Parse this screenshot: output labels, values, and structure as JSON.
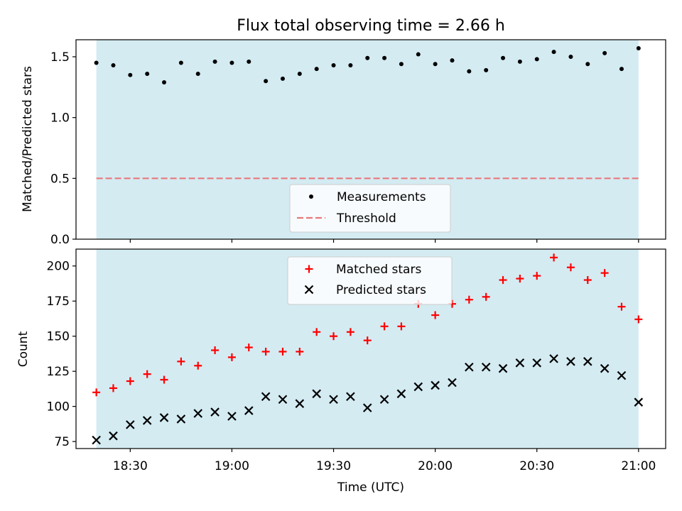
{
  "chart_data": [
    {
      "type": "scatter",
      "title": "Flux total observing time = 2.66 h",
      "ylabel": "Matched/Predicted stars",
      "ylim": [
        0,
        1.64
      ],
      "yticks": [
        0.0,
        0.5,
        1.0,
        1.5
      ],
      "ytick_labels": [
        "0.0",
        "0.5",
        "1.0",
        "1.5"
      ],
      "xlim": [
        "18:14",
        "21:08"
      ],
      "observing_window": [
        "18:20",
        "21:00"
      ],
      "threshold": 0.5,
      "legend_location": "bottom-center",
      "legend": [
        "Measurements",
        "Threshold"
      ],
      "colors": {
        "measurements": "#000000",
        "threshold": "#e8797b",
        "window": "#add8e6"
      },
      "x": [
        "18:20",
        "18:25",
        "18:30",
        "18:35",
        "18:40",
        "18:45",
        "18:50",
        "18:55",
        "19:00",
        "19:05",
        "19:10",
        "19:15",
        "19:20",
        "19:25",
        "19:30",
        "19:35",
        "19:40",
        "19:45",
        "19:50",
        "19:55",
        "20:00",
        "20:05",
        "20:10",
        "20:15",
        "20:20",
        "20:25",
        "20:30",
        "20:35",
        "20:40",
        "20:45",
        "20:50",
        "20:55",
        "21:00"
      ],
      "series": [
        {
          "name": "Measurements",
          "values": [
            1.45,
            1.43,
            1.35,
            1.36,
            1.29,
            1.45,
            1.36,
            1.46,
            1.45,
            1.46,
            1.3,
            1.32,
            1.36,
            1.4,
            1.43,
            1.43,
            1.49,
            1.49,
            1.44,
            1.52,
            1.44,
            1.47,
            1.38,
            1.39,
            1.49,
            1.46,
            1.48,
            1.54,
            1.5,
            1.44,
            1.53,
            1.4,
            1.57
          ]
        }
      ]
    },
    {
      "type": "scatter",
      "xlabel": "Time (UTC)",
      "ylabel": "Count",
      "ylim": [
        70,
        212
      ],
      "yticks": [
        75,
        100,
        125,
        150,
        175,
        200
      ],
      "ytick_labels": [
        "75",
        "100",
        "125",
        "150",
        "175",
        "200"
      ],
      "xticks": [
        "18:30",
        "19:00",
        "19:30",
        "20:00",
        "20:30",
        "21:00"
      ],
      "xlim": [
        "18:14",
        "21:08"
      ],
      "observing_window": [
        "18:20",
        "21:00"
      ],
      "legend_location": "top-center",
      "legend": [
        "Matched stars",
        "Predicted stars"
      ],
      "colors": {
        "matched": "#ff0000",
        "predicted": "#000000",
        "window": "#add8e6"
      },
      "x": [
        "18:20",
        "18:25",
        "18:30",
        "18:35",
        "18:40",
        "18:45",
        "18:50",
        "18:55",
        "19:00",
        "19:05",
        "19:10",
        "19:15",
        "19:20",
        "19:25",
        "19:30",
        "19:35",
        "19:40",
        "19:45",
        "19:50",
        "19:55",
        "20:00",
        "20:05",
        "20:10",
        "20:15",
        "20:20",
        "20:25",
        "20:30",
        "20:35",
        "20:40",
        "20:45",
        "20:50",
        "20:55",
        "21:00"
      ],
      "series": [
        {
          "name": "Matched stars",
          "values": [
            110,
            113,
            118,
            123,
            119,
            132,
            129,
            140,
            135,
            142,
            139,
            139,
            139,
            153,
            150,
            153,
            147,
            157,
            157,
            173,
            165,
            173,
            176,
            178,
            190,
            191,
            193,
            206,
            199,
            190,
            195,
            171,
            162
          ]
        },
        {
          "name": "Predicted stars",
          "values": [
            76,
            79,
            87,
            90,
            92,
            91,
            95,
            96,
            93,
            97,
            107,
            105,
            102,
            109,
            105,
            107,
            99,
            105,
            109,
            114,
            115,
            117,
            128,
            128,
            127,
            131,
            131,
            134,
            132,
            132,
            127,
            122,
            103
          ]
        }
      ]
    }
  ]
}
